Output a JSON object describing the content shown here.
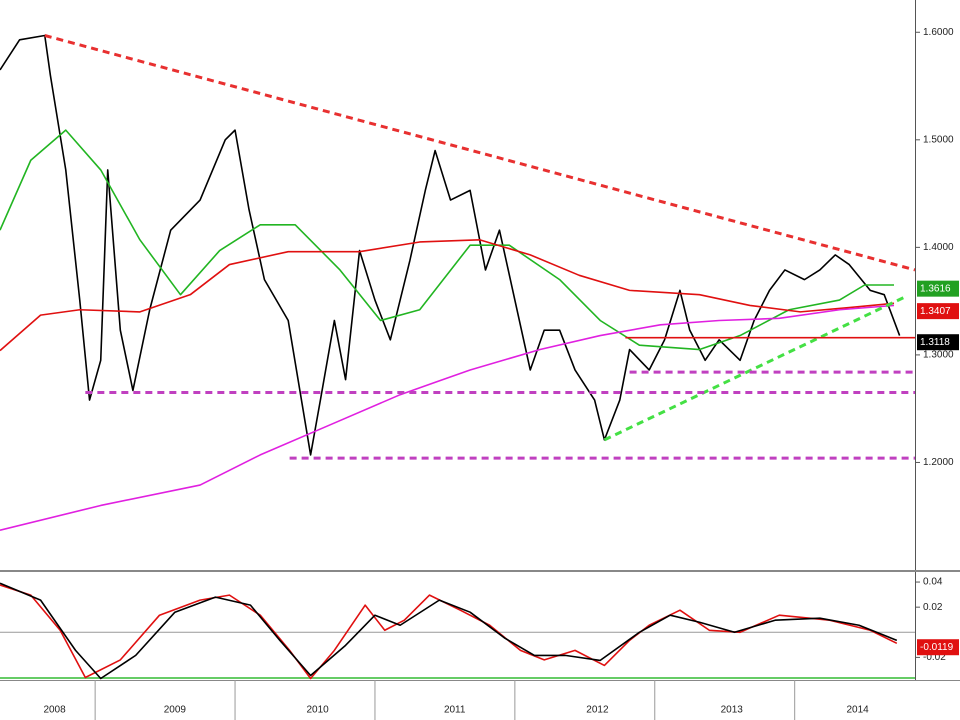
{
  "chart_data": [
    {
      "type": "line",
      "xlim": [
        2008.32,
        2014.86
      ],
      "ylim": [
        1.1,
        1.63
      ],
      "yticks": [
        {
          "value": 1.2,
          "label": "1.2000"
        },
        {
          "value": 1.3,
          "label": "1.3000"
        },
        {
          "value": 1.4,
          "label": "1.4000"
        },
        {
          "value": 1.5,
          "label": "1.5000"
        },
        {
          "value": 1.6,
          "label": "1.6000"
        }
      ],
      "series": [
        {
          "color": "#000000",
          "x": [
            2008.32,
            2008.46,
            2008.64,
            2008.68,
            2008.79,
            2008.89,
            2008.96,
            2009.04,
            2009.09,
            2009.18,
            2009.27,
            2009.39,
            2009.54,
            2009.75,
            2009.93,
            2010.0,
            2010.1,
            2010.21,
            2010.38,
            2010.54,
            2010.61,
            2010.71,
            2010.79,
            2010.89,
            2011.0,
            2011.11,
            2011.25,
            2011.36,
            2011.43,
            2011.54,
            2011.68,
            2011.79,
            2011.89,
            2012.0,
            2012.11,
            2012.21,
            2012.32,
            2012.43,
            2012.57,
            2012.64,
            2012.75,
            2012.82,
            2012.96,
            2013.07,
            2013.18,
            2013.25,
            2013.36,
            2013.46,
            2013.61,
            2013.71,
            2013.82,
            2013.93,
            2014.07,
            2014.18,
            2014.29,
            2014.39,
            2014.54,
            2014.64,
            2014.75
          ],
          "values": [
            1.565,
            1.593,
            1.597,
            1.56,
            1.472,
            1.351,
            1.258,
            1.295,
            1.472,
            1.323,
            1.267,
            1.342,
            1.416,
            1.444,
            1.5,
            1.509,
            1.435,
            1.37,
            1.332,
            1.207,
            1.258,
            1.332,
            1.277,
            1.397,
            1.351,
            1.314,
            1.388,
            1.453,
            1.49,
            1.444,
            1.453,
            1.379,
            1.416,
            1.351,
            1.286,
            1.323,
            1.323,
            1.286,
            1.258,
            1.221,
            1.258,
            1.305,
            1.286,
            1.314,
            1.36,
            1.323,
            1.295,
            1.314,
            1.295,
            1.332,
            1.36,
            1.379,
            1.37,
            1.379,
            1.393,
            1.384,
            1.36,
            1.356,
            1.318
          ]
        },
        {
          "color": "#22b522",
          "x": [
            2008.32,
            2008.54,
            2008.79,
            2009.04,
            2009.32,
            2009.61,
            2009.89,
            2010.18,
            2010.43,
            2010.75,
            2011.04,
            2011.32,
            2011.68,
            2011.96,
            2012.32,
            2012.61,
            2012.89,
            2013.32,
            2013.61,
            2013.96,
            2014.32,
            2014.5,
            2014.71
          ],
          "values": [
            1.416,
            1.481,
            1.509,
            1.472,
            1.407,
            1.356,
            1.397,
            1.421,
            1.421,
            1.379,
            1.332,
            1.342,
            1.402,
            1.402,
            1.37,
            1.332,
            1.309,
            1.305,
            1.318,
            1.342,
            1.351,
            1.365,
            1.365
          ]
        },
        {
          "color": "#e01010",
          "x": [
            2008.32,
            2008.61,
            2008.89,
            2009.32,
            2009.68,
            2009.96,
            2010.38,
            2010.89,
            2011.32,
            2011.75,
            2012.11,
            2012.46,
            2012.82,
            2013.32,
            2013.68,
            2014.04,
            2014.39,
            2014.71
          ],
          "values": [
            1.304,
            1.337,
            1.342,
            1.34,
            1.356,
            1.384,
            1.396,
            1.396,
            1.405,
            1.407,
            1.393,
            1.374,
            1.36,
            1.356,
            1.346,
            1.34,
            1.344,
            1.348
          ]
        },
        {
          "color": "#e020e0",
          "x": [
            2008.32,
            2009.04,
            2009.75,
            2010.18,
            2010.68,
            2011.18,
            2011.68,
            2012.18,
            2012.61,
            2013.04,
            2013.46,
            2013.89,
            2014.32,
            2014.71
          ],
          "values": [
            1.137,
            1.16,
            1.179,
            1.207,
            1.235,
            1.263,
            1.286,
            1.305,
            1.318,
            1.328,
            1.332,
            1.334,
            1.342,
            1.346
          ]
        },
        {
          "color": "#e83030",
          "dash": true,
          "x": [
            2008.64,
            2014.86
          ],
          "values": [
            1.597,
            1.379
          ]
        },
        {
          "color": "#44e044",
          "dash": true,
          "x": [
            2012.64,
            2014.79
          ],
          "values": [
            1.221,
            1.354
          ]
        },
        {
          "color": "#c040c0",
          "dash": true,
          "x": [
            2012.82,
            2014.86
          ],
          "values": [
            1.284,
            1.284
          ]
        },
        {
          "color": "#c040c0",
          "dash": true,
          "x": [
            2008.93,
            2014.86
          ],
          "values": [
            1.265,
            1.265
          ]
        },
        {
          "color": "#c040c0",
          "dash": true,
          "x": [
            2010.39,
            2014.86
          ],
          "values": [
            1.204,
            1.204
          ]
        },
        {
          "color": "#e01010",
          "x": [
            2012.79,
            2014.86
          ],
          "values": [
            1.316,
            1.316
          ]
        }
      ],
      "price_labels": [
        {
          "value": 1.3616,
          "label": "1.3616",
          "color": "#22a022"
        },
        {
          "value": 1.3407,
          "label": "1.3407",
          "color": "#e01010"
        },
        {
          "value": 1.3118,
          "label": "1.3118",
          "color": "#000000"
        }
      ]
    },
    {
      "type": "line",
      "xlim": [
        2008.32,
        2014.86
      ],
      "ylim": [
        -0.038,
        0.048
      ],
      "yticks": [
        -0.02,
        0.02,
        0.04
      ],
      "baseline": 0,
      "xticks": [
        {
          "value": 2008.71,
          "label": "2008"
        },
        {
          "value": 2009.57,
          "label": "2009"
        },
        {
          "value": 2010.59,
          "label": "2010"
        },
        {
          "value": 2011.57,
          "label": "2011"
        },
        {
          "value": 2012.59,
          "label": "2012"
        },
        {
          "value": 2013.55,
          "label": "2013"
        },
        {
          "value": 2014.45,
          "label": "2014"
        }
      ],
      "xminor": [
        2009,
        2010,
        2011,
        2012,
        2013,
        2014
      ],
      "series": [
        {
          "color": "#e01010",
          "x": [
            2008.32,
            2008.54,
            2008.75,
            2008.93,
            2009.18,
            2009.46,
            2009.75,
            2009.96,
            2010.18,
            2010.39,
            2010.54,
            2010.71,
            2010.93,
            2011.07,
            2011.21,
            2011.39,
            2011.61,
            2011.82,
            2012.04,
            2012.21,
            2012.43,
            2012.64,
            2012.82,
            2012.96,
            2013.18,
            2013.39,
            2013.61,
            2013.89,
            2014.25,
            2014.54,
            2014.73
          ],
          "values": [
            0.0376,
            0.0296,
            0.0016,
            -0.036,
            -0.022,
            0.0136,
            0.0256,
            0.0296,
            0.0136,
            -0.0144,
            -0.0368,
            -0.0144,
            0.0216,
            0.0016,
            0.0096,
            0.0296,
            0.0176,
            0.0056,
            -0.0144,
            -0.022,
            -0.0144,
            -0.0264,
            -0.0064,
            0.0056,
            0.0176,
            0.0016,
            0,
            0.0136,
            0.0096,
            0.0016,
            -0.0088
          ]
        },
        {
          "color": "#000000",
          "x": [
            2008.32,
            2008.61,
            2008.86,
            2009.04,
            2009.29,
            2009.57,
            2009.86,
            2010.11,
            2010.32,
            2010.54,
            2010.79,
            2011.0,
            2011.18,
            2011.46,
            2011.68,
            2011.93,
            2012.14,
            2012.36,
            2012.61,
            2012.89,
            2013.11,
            2013.32,
            2013.57,
            2013.86,
            2014.18,
            2014.46,
            2014.73
          ],
          "values": [
            0.039,
            0.0256,
            -0.0144,
            -0.0368,
            -0.0184,
            0.016,
            0.028,
            0.0216,
            -0.0064,
            -0.0344,
            -0.0104,
            0.0136,
            0.0056,
            0.0256,
            0.016,
            -0.0048,
            -0.0184,
            -0.0184,
            -0.0224,
            0,
            0.0136,
            0.008,
            0,
            0.0096,
            0.0112,
            0.0056,
            -0.0064
          ]
        }
      ],
      "price_labels": [
        {
          "value": -0.0119,
          "label": "-0.0119",
          "color": "#e01010"
        }
      ]
    }
  ]
}
